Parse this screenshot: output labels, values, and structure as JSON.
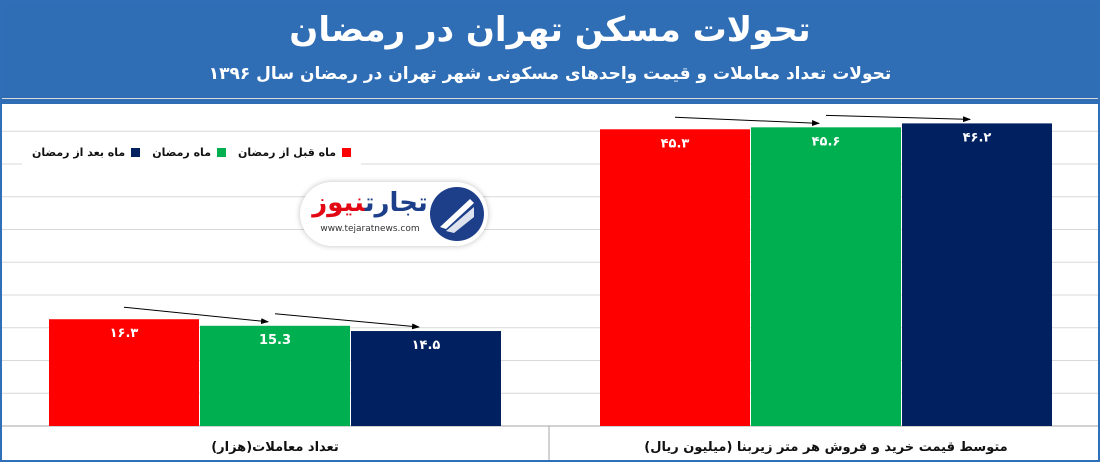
{
  "header": {
    "title": "تحولات مسکن تهران در رمضان",
    "subtitle": "تحولات تعداد معاملات و قیمت واحدهای مسکونی شهر تهران در رمضان سال ۱۳۹۶"
  },
  "logo": {
    "name_part1": "تجارت",
    "name_part2": "نیوز",
    "url": "www.tejaratnews.com"
  },
  "chart_data": {
    "type": "bar",
    "title": "تحولات مسکن تهران در رمضان",
    "subtitle": "تحولات تعداد معاملات و قیمت واحدهای مسکونی شهر تهران در رمضان سال ۱۳۹۶",
    "categories": [
      "تعداد معاملات(هزار)",
      "متوسط قیمت خرید و فروش هر متر زیربنا (میلیون ریال)"
    ],
    "series": [
      {
        "name": "ماه قبل از رمضان",
        "values": [
          16.3,
          45.3
        ],
        "labels": [
          "۱۶.۳",
          "۴۵.۳"
        ],
        "color": "#ff0000"
      },
      {
        "name": "ماه رمضان",
        "values": [
          15.3,
          45.6
        ],
        "labels": [
          "15.3",
          "۴۵.۶"
        ],
        "color": "#00b050"
      },
      {
        "name": "ماه بعد از رمضان",
        "values": [
          14.5,
          46.2
        ],
        "labels": [
          "۱۴.۵",
          "۴۶.۲"
        ],
        "color": "#002060"
      }
    ],
    "ylim": [
      0,
      50
    ],
    "grid": true,
    "legend_position": "top-left"
  }
}
